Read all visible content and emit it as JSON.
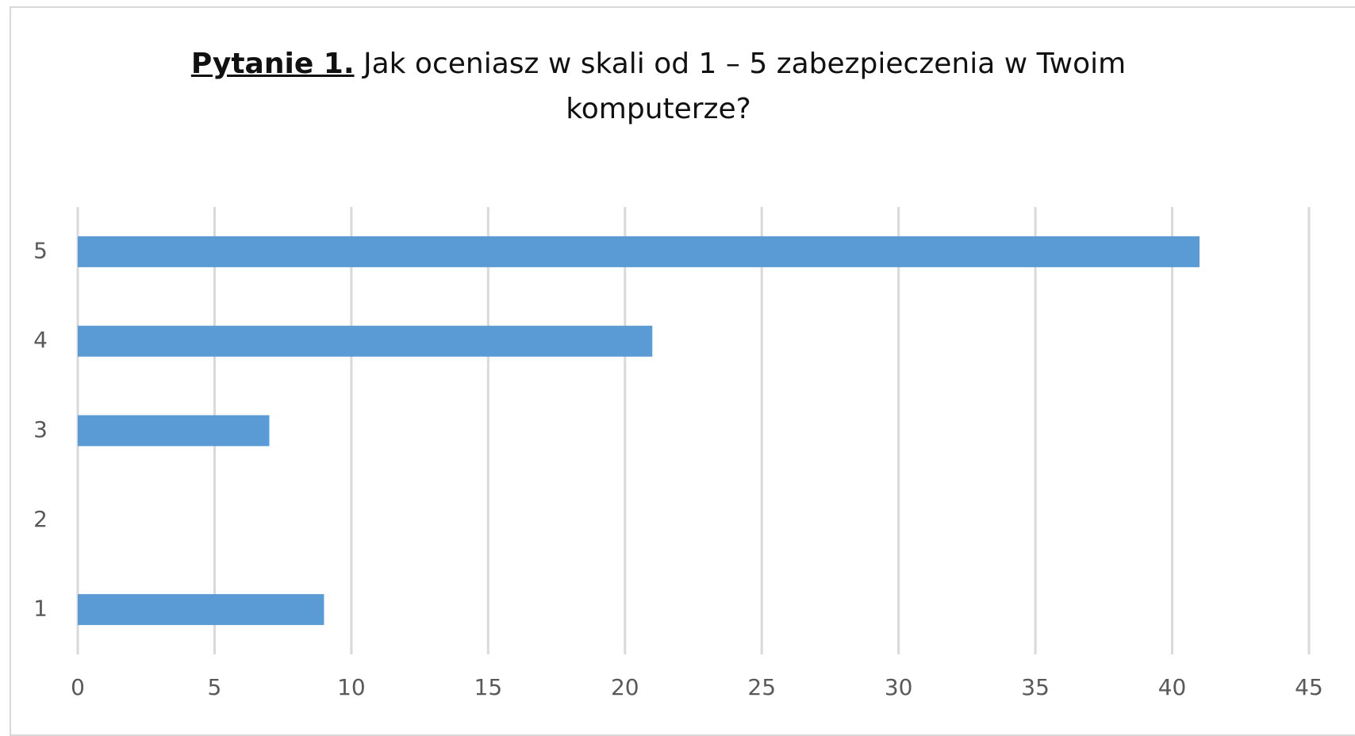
{
  "chart_data": {
    "type": "barh",
    "title_lead": "Pytanie 1.",
    "title": "Jak oceniasz w skali od 1 – 5 zabezpieczenia w Twoim komputerze?",
    "categories": [
      "1",
      "2",
      "3",
      "4",
      "5"
    ],
    "values": [
      9,
      0,
      7,
      21,
      41
    ],
    "color": "#5b9bd5",
    "xlim": [
      0,
      45
    ],
    "xticks": [
      0,
      5,
      10,
      15,
      20,
      25,
      30,
      35,
      40,
      45
    ],
    "grid": true
  }
}
